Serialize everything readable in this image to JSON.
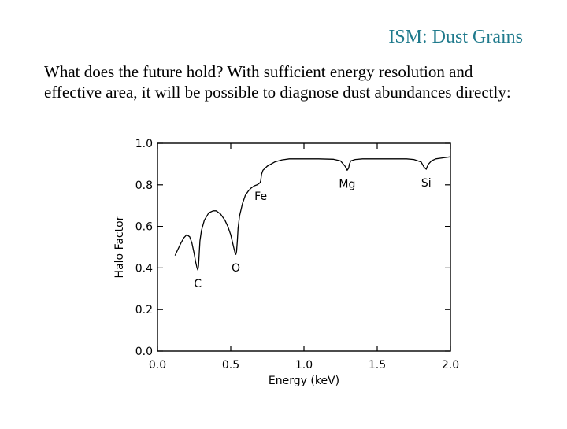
{
  "slide": {
    "title": "ISM: Dust Grains",
    "body": "What does the future hold?  With sufficient energy resolution and effective area, it will be possible to diagnose dust abundances directly:"
  },
  "chart_data": {
    "type": "line",
    "xlabel": "Energy (keV)",
    "ylabel": "Halo Factor",
    "xlim": [
      0.0,
      2.0
    ],
    "ylim": [
      0.0,
      1.0
    ],
    "xticks": [
      0.0,
      0.5,
      1.0,
      1.5,
      2.0
    ],
    "xtick_labels": [
      "0.0",
      "0.5",
      "1.0",
      "1.5",
      "2.0"
    ],
    "yticks": [
      0.0,
      0.2,
      0.4,
      0.6,
      0.8,
      1.0
    ],
    "ytick_labels": [
      "0.0",
      "0.2",
      "0.4",
      "0.6",
      "0.8",
      "1.0"
    ],
    "grid": false,
    "series": [
      {
        "x": [
          0.12,
          0.14,
          0.16,
          0.18,
          0.2,
          0.22,
          0.235,
          0.25,
          0.26,
          0.27,
          0.275,
          0.28,
          0.285,
          0.29,
          0.3,
          0.32,
          0.35,
          0.38,
          0.4,
          0.43,
          0.46,
          0.48,
          0.5,
          0.52,
          0.53,
          0.535,
          0.54,
          0.545,
          0.55,
          0.56,
          0.58,
          0.6,
          0.62,
          0.64,
          0.66,
          0.68,
          0.7,
          0.705,
          0.71,
          0.72,
          0.75,
          0.8,
          0.85,
          0.9,
          0.95,
          1.0,
          1.1,
          1.2,
          1.25,
          1.28,
          1.295,
          1.305,
          1.31,
          1.32,
          1.35,
          1.4,
          1.5,
          1.6,
          1.7,
          1.75,
          1.8,
          1.82,
          1.835,
          1.84,
          1.85,
          1.87,
          1.9,
          1.95,
          2.0
        ],
        "y": [
          0.46,
          0.49,
          0.52,
          0.545,
          0.56,
          0.55,
          0.52,
          0.47,
          0.43,
          0.4,
          0.39,
          0.41,
          0.47,
          0.53,
          0.58,
          0.63,
          0.665,
          0.675,
          0.675,
          0.66,
          0.63,
          0.6,
          0.56,
          0.5,
          0.47,
          0.465,
          0.48,
          0.53,
          0.59,
          0.65,
          0.71,
          0.75,
          0.77,
          0.785,
          0.795,
          0.8,
          0.81,
          0.82,
          0.85,
          0.87,
          0.89,
          0.91,
          0.92,
          0.925,
          0.925,
          0.925,
          0.925,
          0.923,
          0.915,
          0.89,
          0.87,
          0.88,
          0.9,
          0.915,
          0.922,
          0.925,
          0.925,
          0.925,
          0.925,
          0.922,
          0.91,
          0.885,
          0.875,
          0.885,
          0.9,
          0.915,
          0.925,
          0.93,
          0.935
        ]
      }
    ],
    "annotations": [
      {
        "text": "C",
        "x": 0.275,
        "y": 0.39
      },
      {
        "text": "O",
        "x": 0.535,
        "y": 0.465
      },
      {
        "text": "Fe",
        "x": 0.705,
        "y": 0.81
      },
      {
        "text": "Mg",
        "x": 1.295,
        "y": 0.87
      },
      {
        "text": "Si",
        "x": 1.835,
        "y": 0.875
      }
    ]
  }
}
